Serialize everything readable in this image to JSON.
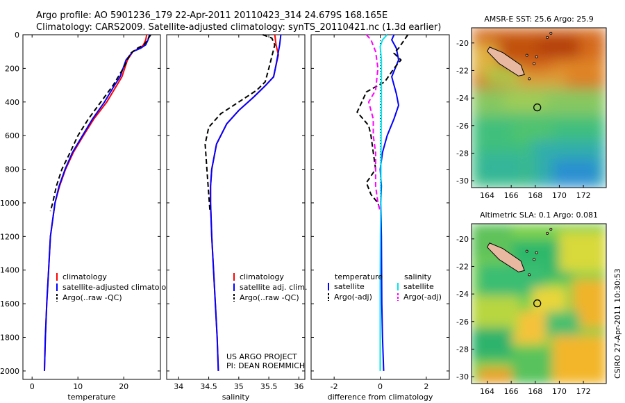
{
  "header": {
    "line1": "Argo profile: AO 5901236_179 22-Apr-2011 20110423_314 24.679S 168.165E",
    "line2": "Climatology: CARS2009. Satellite-adjusted climatology: synTS_20110421.nc (1.3d earlier)"
  },
  "footer": {
    "project": "US ARGO PROJECT",
    "pi": "PI: DEAN ROEMMICH",
    "stamp": "CSIRO 27-Apr-2011 10:30:53"
  },
  "colors": {
    "climatology": "#ff0000",
    "satellite": "#0000ff",
    "argo": "#000000",
    "sat_salinity": "#00e5ee",
    "argo_salinity": "#ff00ff"
  },
  "chart_data": [
    {
      "type": "line",
      "xlabel": "temperature",
      "ylabel": "",
      "xlim": [
        -2,
        28
      ],
      "ylim": [
        2050,
        0
      ],
      "xticks": [
        0,
        10,
        20
      ],
      "yticks": [
        0,
        200,
        400,
        600,
        800,
        1000,
        1200,
        1400,
        1600,
        1800,
        2000
      ],
      "legend": {
        "position": "bottom-right",
        "entries": [
          "climatology",
          "satellite-adjusted climatology",
          "Argo(..raw -QC)"
        ]
      },
      "series": [
        {
          "name": "climatology",
          "color": "#ff0000",
          "dash": "solid",
          "points": [
            [
              25.0,
              0
            ],
            [
              24.8,
              30
            ],
            [
              24.3,
              60
            ],
            [
              23.5,
              80
            ],
            [
              22.0,
              100
            ],
            [
              20.8,
              150
            ],
            [
              19.6,
              250
            ],
            [
              18.5,
              300
            ],
            [
              16.3,
              400
            ],
            [
              13.5,
              500
            ],
            [
              11.2,
              600
            ],
            [
              9.0,
              700
            ],
            [
              7.3,
              800
            ],
            [
              6.0,
              900
            ],
            [
              5.0,
              1000
            ],
            [
              4.5,
              1100
            ],
            [
              4.0,
              1200
            ],
            [
              3.6,
              1400
            ],
            [
              3.2,
              1600
            ],
            [
              2.9,
              1800
            ],
            [
              2.7,
              2000
            ]
          ]
        },
        {
          "name": "satellite-adjusted climatology",
          "color": "#0000ff",
          "dash": "solid",
          "points": [
            [
              25.6,
              0
            ],
            [
              25.3,
              30
            ],
            [
              24.8,
              60
            ],
            [
              23.7,
              80
            ],
            [
              22.0,
              100
            ],
            [
              20.5,
              150
            ],
            [
              19.2,
              250
            ],
            [
              18.0,
              300
            ],
            [
              15.8,
              400
            ],
            [
              13.2,
              500
            ],
            [
              11.0,
              600
            ],
            [
              8.8,
              700
            ],
            [
              7.2,
              800
            ],
            [
              5.9,
              900
            ],
            [
              5.0,
              1000
            ],
            [
              4.5,
              1100
            ],
            [
              4.0,
              1200
            ],
            [
              3.6,
              1400
            ],
            [
              3.2,
              1600
            ],
            [
              2.9,
              1800
            ],
            [
              2.7,
              2000
            ]
          ]
        },
        {
          "name": "Argo(..raw -QC)",
          "color": "#000000",
          "dash": "dashed",
          "points": [
            [
              25.9,
              0
            ],
            [
              25.4,
              20
            ],
            [
              25.0,
              40
            ],
            [
              24.4,
              60
            ],
            [
              23.0,
              80
            ],
            [
              21.5,
              110
            ],
            [
              19.9,
              200
            ],
            [
              17.7,
              300
            ],
            [
              15.0,
              400
            ],
            [
              12.3,
              500
            ],
            [
              10.0,
              600
            ],
            [
              8.3,
              700
            ],
            [
              6.5,
              800
            ],
            [
              5.3,
              900
            ],
            [
              4.5,
              1000
            ],
            [
              4.0,
              1050
            ]
          ]
        }
      ]
    },
    {
      "type": "line",
      "xlabel": "salinity",
      "xlim": [
        33.8,
        36.1
      ],
      "ylim": [
        2050,
        0
      ],
      "xticks": [
        34,
        34.5,
        35,
        35.5,
        36
      ],
      "legend": {
        "position": "bottom-right",
        "entries": [
          "climatology",
          "satellite adj. clim.",
          "Argo(..raw -QC)"
        ]
      },
      "series": [
        {
          "name": "climatology",
          "color": "#ff0000",
          "dash": "solid",
          "points": [
            [
              35.6,
              0
            ],
            [
              35.62,
              60
            ],
            [
              35.66,
              120
            ],
            [
              35.62,
              180
            ],
            [
              35.58,
              250
            ],
            [
              35.45,
              300
            ],
            [
              35.25,
              370
            ],
            [
              35.0,
              450
            ],
            [
              34.8,
              530
            ],
            [
              34.63,
              650
            ],
            [
              34.55,
              800
            ],
            [
              34.53,
              900
            ],
            [
              34.53,
              1000
            ],
            [
              34.55,
              1200
            ],
            [
              34.58,
              1400
            ],
            [
              34.61,
              1600
            ],
            [
              34.64,
              1800
            ],
            [
              34.66,
              2000
            ]
          ]
        },
        {
          "name": "satellite adj. clim.",
          "color": "#0000ff",
          "dash": "solid",
          "points": [
            [
              35.7,
              0
            ],
            [
              35.68,
              60
            ],
            [
              35.65,
              120
            ],
            [
              35.62,
              180
            ],
            [
              35.58,
              250
            ],
            [
              35.45,
              300
            ],
            [
              35.25,
              370
            ],
            [
              35.0,
              450
            ],
            [
              34.8,
              530
            ],
            [
              34.63,
              650
            ],
            [
              34.55,
              800
            ],
            [
              34.53,
              900
            ],
            [
              34.53,
              1000
            ],
            [
              34.55,
              1200
            ],
            [
              34.58,
              1400
            ],
            [
              34.61,
              1600
            ],
            [
              34.64,
              1800
            ],
            [
              34.66,
              2000
            ]
          ]
        },
        {
          "name": "Argo(..raw -QC)",
          "color": "#000000",
          "dash": "dashed",
          "points": [
            [
              35.4,
              0
            ],
            [
              35.55,
              20
            ],
            [
              35.6,
              60
            ],
            [
              35.55,
              130
            ],
            [
              35.5,
              200
            ],
            [
              35.44,
              280
            ],
            [
              35.3,
              330
            ],
            [
              35.0,
              400
            ],
            [
              34.7,
              470
            ],
            [
              34.5,
              550
            ],
            [
              34.44,
              650
            ],
            [
              34.46,
              750
            ],
            [
              34.48,
              850
            ],
            [
              34.5,
              950
            ],
            [
              34.52,
              1050
            ]
          ]
        }
      ]
    },
    {
      "type": "line",
      "xlabel": "difference from climatology",
      "xlim": [
        -3,
        3
      ],
      "ylim": [
        2050,
        0
      ],
      "xticks": [
        -2,
        0,
        2
      ],
      "legend": {
        "position": "bottom-right",
        "headers": [
          "temperature",
          "salinity"
        ],
        "entries": [
          "satellite",
          "Argo(-adj)",
          "satellite",
          "Argo(-adj)"
        ]
      },
      "series": [
        {
          "name": "satellite",
          "quantity": "temperature",
          "color": "#0000ff",
          "dash": "solid",
          "points": [
            [
              0.6,
              0
            ],
            [
              0.5,
              30
            ],
            [
              0.7,
              80
            ],
            [
              0.8,
              150
            ],
            [
              0.5,
              250
            ],
            [
              0.6,
              300
            ],
            [
              0.7,
              350
            ],
            [
              0.8,
              420
            ],
            [
              0.6,
              500
            ],
            [
              0.3,
              600
            ],
            [
              0.1,
              700
            ],
            [
              0.0,
              800
            ],
            [
              0.05,
              900
            ],
            [
              0.02,
              1000
            ],
            [
              0.05,
              1200
            ],
            [
              0.07,
              1600
            ],
            [
              0.1,
              1800
            ],
            [
              0.15,
              2000
            ]
          ]
        },
        {
          "name": "Argo(-adj)",
          "quantity": "temperature",
          "color": "#000000",
          "dash": "dashed",
          "points": [
            [
              1.2,
              0
            ],
            [
              1.0,
              40
            ],
            [
              0.8,
              80
            ],
            [
              0.6,
              110
            ],
            [
              0.9,
              150
            ],
            [
              0.6,
              200
            ],
            [
              0.2,
              280
            ],
            [
              -0.6,
              340
            ],
            [
              -0.8,
              400
            ],
            [
              -1.0,
              460
            ],
            [
              -0.5,
              540
            ],
            [
              -0.4,
              600
            ],
            [
              -0.3,
              700
            ],
            [
              -0.2,
              800
            ],
            [
              -0.6,
              880
            ],
            [
              -0.4,
              950
            ],
            [
              -0.1,
              1000
            ],
            [
              0.0,
              1050
            ]
          ]
        },
        {
          "name": "satellite",
          "quantity": "salinity",
          "color": "#00e5ee",
          "dash": "solid",
          "points": [
            [
              0.3,
              0
            ],
            [
              0.1,
              30
            ],
            [
              0.0,
              70
            ],
            [
              0.05,
              150
            ],
            [
              0.05,
              250
            ],
            [
              0.05,
              400
            ],
            [
              0.04,
              600
            ],
            [
              0.03,
              800
            ],
            [
              0.02,
              1000
            ],
            [
              0.01,
              1200
            ],
            [
              0.0,
              1500
            ],
            [
              0.0,
              2000
            ]
          ]
        },
        {
          "name": "Argo(-adj)",
          "quantity": "salinity",
          "color": "#ff00ff",
          "dash": "dashed",
          "points": [
            [
              -0.6,
              0
            ],
            [
              -0.4,
              30
            ],
            [
              -0.2,
              100
            ],
            [
              -0.1,
              200
            ],
            [
              -0.2,
              330
            ],
            [
              -0.5,
              400
            ],
            [
              -0.3,
              500
            ],
            [
              -0.3,
              600
            ],
            [
              -0.2,
              700
            ],
            [
              -0.2,
              800
            ],
            [
              -0.2,
              900
            ],
            [
              -0.1,
              1000
            ],
            [
              0.0,
              1050
            ]
          ]
        }
      ]
    },
    {
      "type": "heatmap",
      "title": "AMSR-E SST: 25.6 Argo: 25.9",
      "xlim": [
        162.7,
        173.9
      ],
      "ylim": [
        -30.5,
        -18.9
      ],
      "xticks": [
        164,
        166,
        168,
        170,
        172
      ],
      "yticks": [
        -20,
        -22,
        -24,
        -26,
        -28,
        -30
      ],
      "marker": {
        "lon": 168.165,
        "lat": -24.679
      }
    },
    {
      "type": "heatmap",
      "title": "Altimetric SLA: 0.1 Argo: 0.081",
      "xlim": [
        162.7,
        173.9
      ],
      "ylim": [
        -30.5,
        -18.9
      ],
      "xticks": [
        164,
        166,
        168,
        170,
        172
      ],
      "yticks": [
        -20,
        -22,
        -24,
        -26,
        -28,
        -30
      ],
      "marker": {
        "lon": 168.165,
        "lat": -24.679
      }
    }
  ]
}
